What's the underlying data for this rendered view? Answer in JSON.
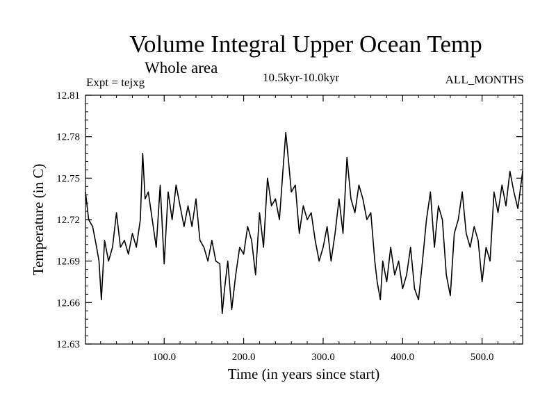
{
  "chart_data": {
    "type": "line",
    "title": "Volume Integral Upper Ocean Temp",
    "subtitle": "Whole area",
    "annotations": {
      "left": "Expt = tejxg",
      "center": "10.5kyr-10.0kyr",
      "right": "ALL_MONTHS"
    },
    "xlabel": "Time (in years since start)",
    "ylabel": "Temperature (in C)",
    "xlim": [
      1,
      551
    ],
    "ylim": [
      12.63,
      12.81
    ],
    "x_ticks": [
      100,
      200,
      300,
      400,
      500
    ],
    "x_tick_labels": [
      "100.0",
      "200.0",
      "300.0",
      "400.0",
      "500.0"
    ],
    "y_ticks": [
      12.63,
      12.66,
      12.69,
      12.72,
      12.75,
      12.78,
      12.81
    ],
    "y_tick_labels": [
      "12.63",
      "12.66",
      "12.69",
      "12.72",
      "12.75",
      "12.78",
      "12.81"
    ],
    "grid": false,
    "series": [
      {
        "name": "Temperature",
        "x": [
          1,
          5,
          10,
          15,
          18,
          21,
          25,
          30,
          35,
          40,
          45,
          50,
          55,
          60,
          65,
          70,
          73,
          76,
          80,
          85,
          90,
          95,
          100,
          105,
          110,
          115,
          120,
          125,
          130,
          135,
          140,
          145,
          150,
          155,
          160,
          165,
          170,
          173,
          176,
          180,
          185,
          190,
          195,
          200,
          205,
          210,
          215,
          220,
          225,
          230,
          235,
          240,
          245,
          250,
          253,
          256,
          260,
          265,
          270,
          275,
          280,
          285,
          290,
          295,
          300,
          305,
          310,
          315,
          320,
          325,
          330,
          335,
          340,
          345,
          350,
          355,
          360,
          365,
          368,
          372,
          375,
          380,
          385,
          390,
          395,
          400,
          405,
          410,
          415,
          420,
          425,
          430,
          435,
          440,
          445,
          450,
          455,
          460,
          465,
          470,
          475,
          480,
          485,
          490,
          495,
          500,
          505,
          510,
          515,
          520,
          525,
          530,
          535,
          540,
          545,
          551
        ],
        "values": [
          12.74,
          12.72,
          12.715,
          12.7,
          12.69,
          12.662,
          12.705,
          12.69,
          12.7,
          12.725,
          12.7,
          12.705,
          12.695,
          12.71,
          12.7,
          12.72,
          12.768,
          12.735,
          12.74,
          12.72,
          12.7,
          12.745,
          12.688,
          12.74,
          12.72,
          12.745,
          12.73,
          12.715,
          12.73,
          12.715,
          12.735,
          12.705,
          12.7,
          12.69,
          12.705,
          12.69,
          12.688,
          12.652,
          12.67,
          12.69,
          12.655,
          12.68,
          12.7,
          12.695,
          12.715,
          12.705,
          12.68,
          12.725,
          12.7,
          12.75,
          12.73,
          12.735,
          12.72,
          12.76,
          12.783,
          12.765,
          12.74,
          12.745,
          12.71,
          12.73,
          12.72,
          12.725,
          12.705,
          12.69,
          12.7,
          12.715,
          12.69,
          12.71,
          12.735,
          12.71,
          12.765,
          12.735,
          12.725,
          12.745,
          12.735,
          12.72,
          12.725,
          12.69,
          12.675,
          12.662,
          12.69,
          12.675,
          12.7,
          12.68,
          12.69,
          12.67,
          12.68,
          12.7,
          12.67,
          12.662,
          12.69,
          12.72,
          12.74,
          12.7,
          12.73,
          12.72,
          12.68,
          12.665,
          12.71,
          12.72,
          12.74,
          12.71,
          12.7,
          12.715,
          12.705,
          12.675,
          12.7,
          12.69,
          12.74,
          12.725,
          12.745,
          12.73,
          12.755,
          12.74,
          12.728,
          12.755
        ]
      }
    ]
  }
}
